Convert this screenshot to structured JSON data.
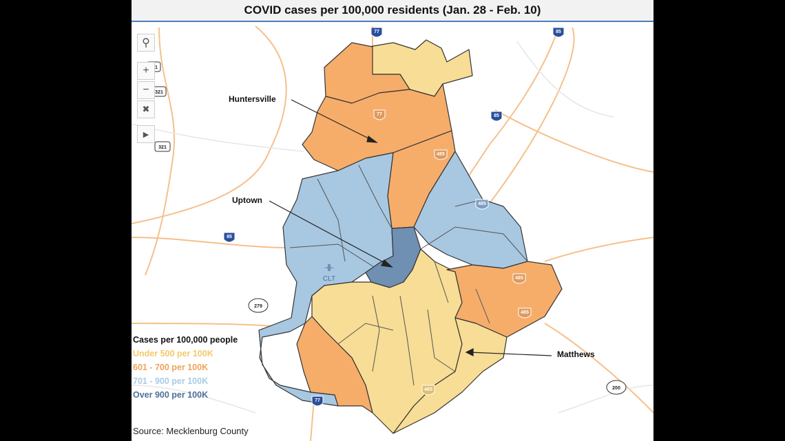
{
  "title": "COVID cases per 100,000 residents (Jan. 28 - Feb. 10)",
  "labels": {
    "huntersville": "Huntersville",
    "uptown": "Uptown",
    "matthews": "Matthews"
  },
  "airport": "CLT",
  "highway_shields": {
    "i77_top": "77",
    "i85_top": "85",
    "i85_right": "85",
    "i85_left": "85",
    "i77_mid": "77",
    "i485_a": "485",
    "i485_b": "485",
    "i485_c": "485",
    "i485_d": "485",
    "i485_e": "485",
    "i77_bottom": "77",
    "us321_a": "321",
    "us321_b": "321",
    "us321_c": "321",
    "r279": "279",
    "r200": "200"
  },
  "legend": {
    "heading": "Cases per 100,000 people",
    "items": [
      {
        "label": "Under 500 per 100K",
        "color": "#f3c96b"
      },
      {
        "label": "601 - 700 per 100K",
        "color": "#f0a35a"
      },
      {
        "label": "701 - 900 per 100K",
        "color": "#a9cbe6"
      },
      {
        "label": "Over 900 per 100K",
        "color": "#4f6f9a"
      }
    ]
  },
  "source": "Source: Mecklenburg County",
  "map_colors": {
    "yellow": "#f7dd95",
    "orange": "#f6ad6a",
    "light_blue": "#a8c7e1",
    "dark_blue": "#6f8fb3"
  },
  "toolbar": {
    "search_icon": "magnifier-icon",
    "zoom_in": "+",
    "zoom_out": "−",
    "clear_pins": "pin-clear-icon",
    "play": "play-icon"
  }
}
